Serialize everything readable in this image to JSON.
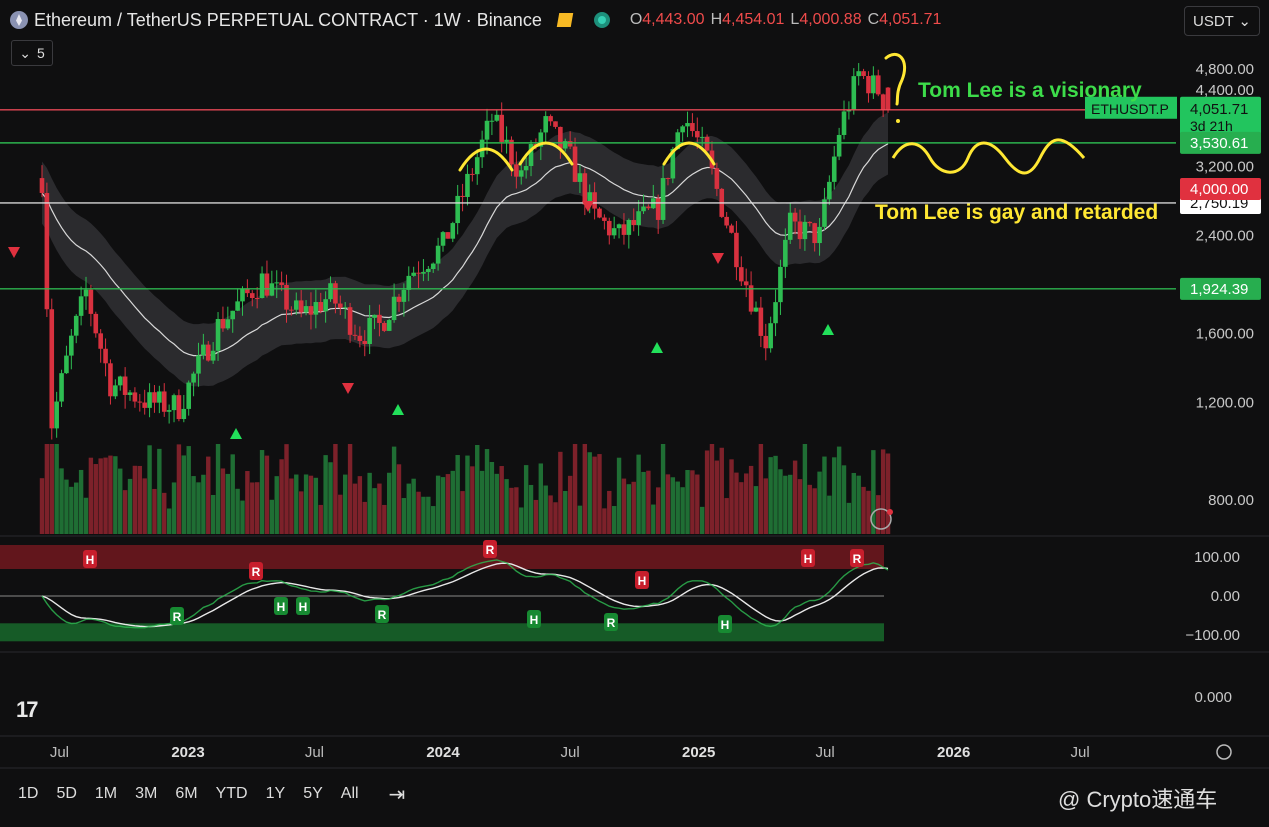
{
  "header": {
    "title": "Ethereum / TetherUS PERPETUAL CONTRACT · 1W · Binance",
    "ohlc": [
      {
        "k": "O",
        "v": "4,443.00"
      },
      {
        "k": "H",
        "v": "4,454.01"
      },
      {
        "k": "L",
        "v": "4,000.88"
      },
      {
        "k": "C",
        "v": "4,051.71"
      }
    ],
    "currency": "USDT",
    "indicator_count": "5"
  },
  "chart_data": {
    "type": "candlestick",
    "symbol": "ETHUSDT.P",
    "interval": "1W",
    "y_ticks": [
      "4,800.00",
      "4,400.00",
      "3,200.00",
      "2,400.00",
      "1,600.00",
      "1,200.00",
      "800.00"
    ],
    "y_tick_values": [
      4800,
      4400,
      3200,
      2400,
      1600,
      1200,
      800
    ],
    "x_labels": [
      "Jul",
      "2023",
      "Jul",
      "2024",
      "Jul",
      "2025",
      "Jul",
      "2026",
      "Jul"
    ],
    "x_label_dates": [
      "2022-07-01",
      "2023-01-01",
      "2023-07-01",
      "2024-01-01",
      "2024-07-01",
      "2025-01-01",
      "2025-07-01",
      "2026-01-01",
      "2026-07-01"
    ],
    "weekly_close_path": [
      {
        "date": "2022-06-06",
        "close": 3050
      },
      {
        "date": "2022-06-20",
        "close": 1100
      },
      {
        "date": "2022-07-18",
        "close": 1550
      },
      {
        "date": "2022-08-08",
        "close": 1900
      },
      {
        "date": "2022-09-12",
        "close": 1300
      },
      {
        "date": "2022-11-07",
        "close": 1200
      },
      {
        "date": "2022-12-19",
        "close": 1180
      },
      {
        "date": "2023-02-13",
        "close": 1650
      },
      {
        "date": "2023-04-17",
        "close": 2000
      },
      {
        "date": "2023-06-12",
        "close": 1720
      },
      {
        "date": "2023-07-24",
        "close": 1870
      },
      {
        "date": "2023-09-04",
        "close": 1600
      },
      {
        "date": "2023-10-02",
        "close": 1650
      },
      {
        "date": "2023-11-13",
        "close": 2050
      },
      {
        "date": "2024-01-01",
        "close": 2300
      },
      {
        "date": "2024-03-11",
        "close": 3900
      },
      {
        "date": "2024-04-22",
        "close": 3100
      },
      {
        "date": "2024-05-27",
        "close": 3800
      },
      {
        "date": "2024-07-01",
        "close": 3300
      },
      {
        "date": "2024-08-05",
        "close": 2600
      },
      {
        "date": "2024-09-09",
        "close": 2400
      },
      {
        "date": "2024-11-04",
        "close": 2700
      },
      {
        "date": "2024-12-09",
        "close": 4000
      },
      {
        "date": "2025-01-13",
        "close": 3300
      },
      {
        "date": "2025-03-03",
        "close": 2100
      },
      {
        "date": "2025-04-07",
        "close": 1550
      },
      {
        "date": "2025-05-12",
        "close": 2500
      },
      {
        "date": "2025-06-23",
        "close": 2400
      },
      {
        "date": "2025-07-21",
        "close": 3700
      },
      {
        "date": "2025-08-18",
        "close": 4700
      },
      {
        "date": "2025-09-15",
        "close": 4400
      },
      {
        "date": "2025-09-29",
        "close": 4051.71
      }
    ],
    "price_lines": [
      {
        "price": 4051.71,
        "label": "4,051.71",
        "color": "#ef4b5a"
      },
      {
        "price": 3530.61,
        "label": "3,530.61",
        "color": "#2ebd52"
      },
      {
        "price": 2750.19,
        "label": "2,750.19",
        "color": "#e0e0e0"
      },
      {
        "price": 1924.39,
        "label": "1,924.39",
        "color": "#2ebd52"
      }
    ],
    "extra_labels": {
      "symbol_tag": "ETHUSDT.P",
      "countdown": "3d 21h",
      "low_level": "4,000.00"
    },
    "oscillator": {
      "y_ticks": [
        "100.00",
        "0.00",
        "−100.00"
      ],
      "y_tick_values": [
        100,
        0,
        -100
      ],
      "empty_pane_tick": "0.000",
      "signal_letters": {
        "hidden": "H",
        "regular": "R"
      }
    }
  },
  "annotations": {
    "green_text": "Tom Lee is a visionary",
    "yellow_text": "Tom Lee is gay and retarded"
  },
  "toolbar": {
    "ranges": [
      "1D",
      "5D",
      "1M",
      "3M",
      "6M",
      "YTD",
      "1Y",
      "5Y",
      "All"
    ]
  },
  "watermark": "@ Crypto速通车",
  "logo_text": "17",
  "colors": {
    "up": "#2ebd52",
    "down": "#d8313f",
    "bg": "#0f0f10",
    "grid": "#1c1c1e"
  }
}
